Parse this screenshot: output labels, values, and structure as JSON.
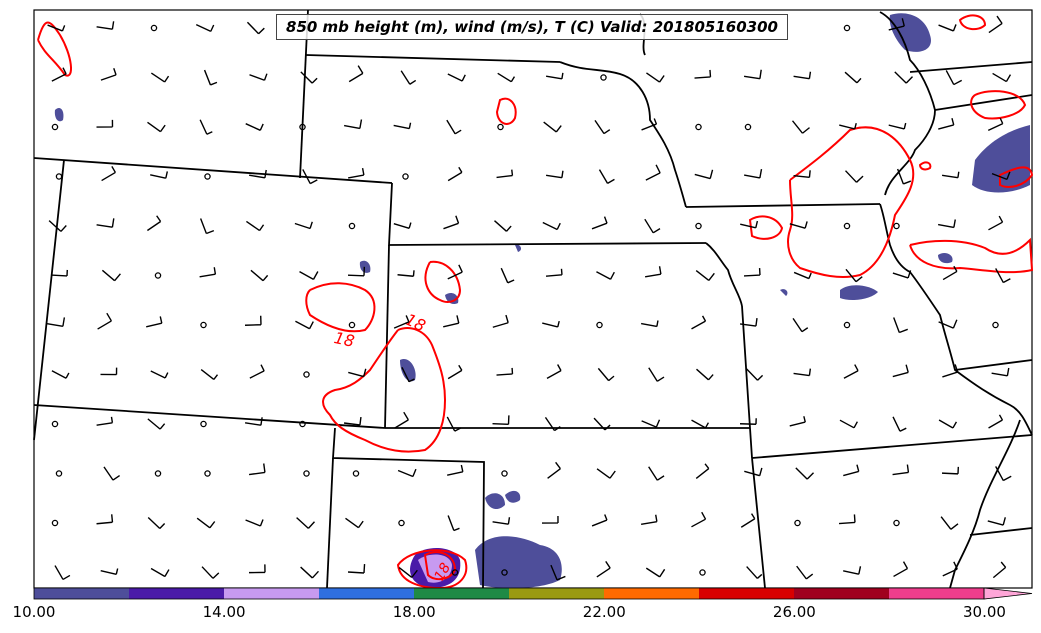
{
  "title": "850 mb height (m), wind (m/s), T (C) Valid: 201805160300",
  "contour_labels": [
    "18",
    "18",
    "18"
  ],
  "colorbar": {
    "ticks": [
      "10.00",
      "14.00",
      "18.00",
      "22.00",
      "26.00",
      "30.00"
    ],
    "min": 10,
    "max": 31,
    "extend": "max",
    "colors": [
      "#4e4e9a",
      "#4a1aa8",
      "#c79af0",
      "#2f6fe0",
      "#1f8a45",
      "#9a9a12",
      "#ff6a00",
      "#d80000",
      "#a0001f",
      "#ee3d8c",
      "#ffa6d8"
    ]
  },
  "colors": {
    "temperature_contour": "#ff0000",
    "boundaries": "#000000",
    "precip_main": "#4e4e9a",
    "precip_secondary": "#4a1aa8"
  },
  "icons": [
    "wind-barb-icon",
    "calm-wind-circle-icon"
  ]
}
